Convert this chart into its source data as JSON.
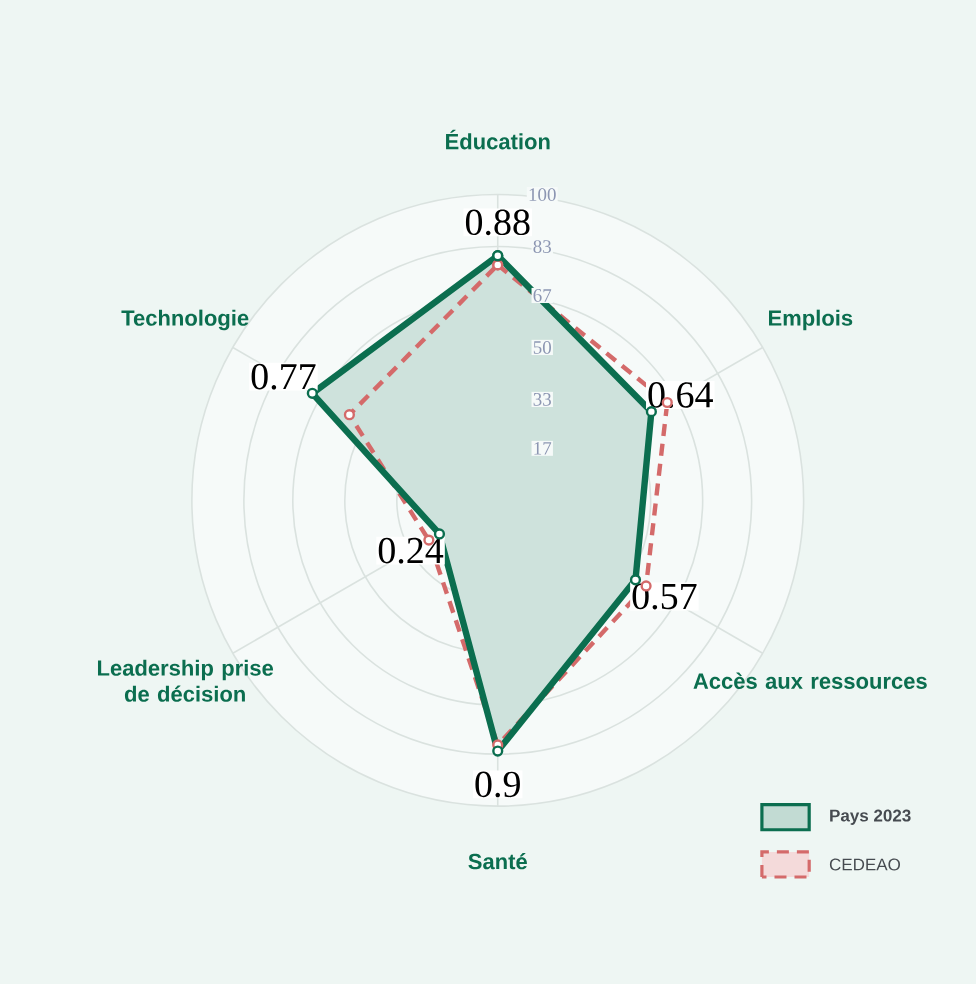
{
  "chart_data": {
    "type": "radar",
    "categories": [
      "Éducation",
      "Emplois",
      "Accès aux ressources",
      "Santé",
      "Leadership prise de décision",
      "Technologie"
    ],
    "series": [
      {
        "name": "Pays 2023",
        "color": "#0b6e4f",
        "values": [
          80,
          58,
          52,
          82,
          22,
          70
        ],
        "line_style": "solid"
      },
      {
        "name": "CEDEAO",
        "color": "#d46a6a",
        "values": [
          77,
          64,
          56,
          80,
          26,
          56
        ],
        "line_style": "dashed"
      }
    ],
    "ylim": [
      0,
      100
    ],
    "yticks": [
      17,
      33,
      50,
      67,
      83,
      100
    ],
    "annotations": [
      "0.88",
      "0.64",
      "0.57",
      "0.9",
      "0.24",
      "0.77"
    ],
    "grid": true,
    "legend": "bottom right",
    "marker": "circle"
  }
}
